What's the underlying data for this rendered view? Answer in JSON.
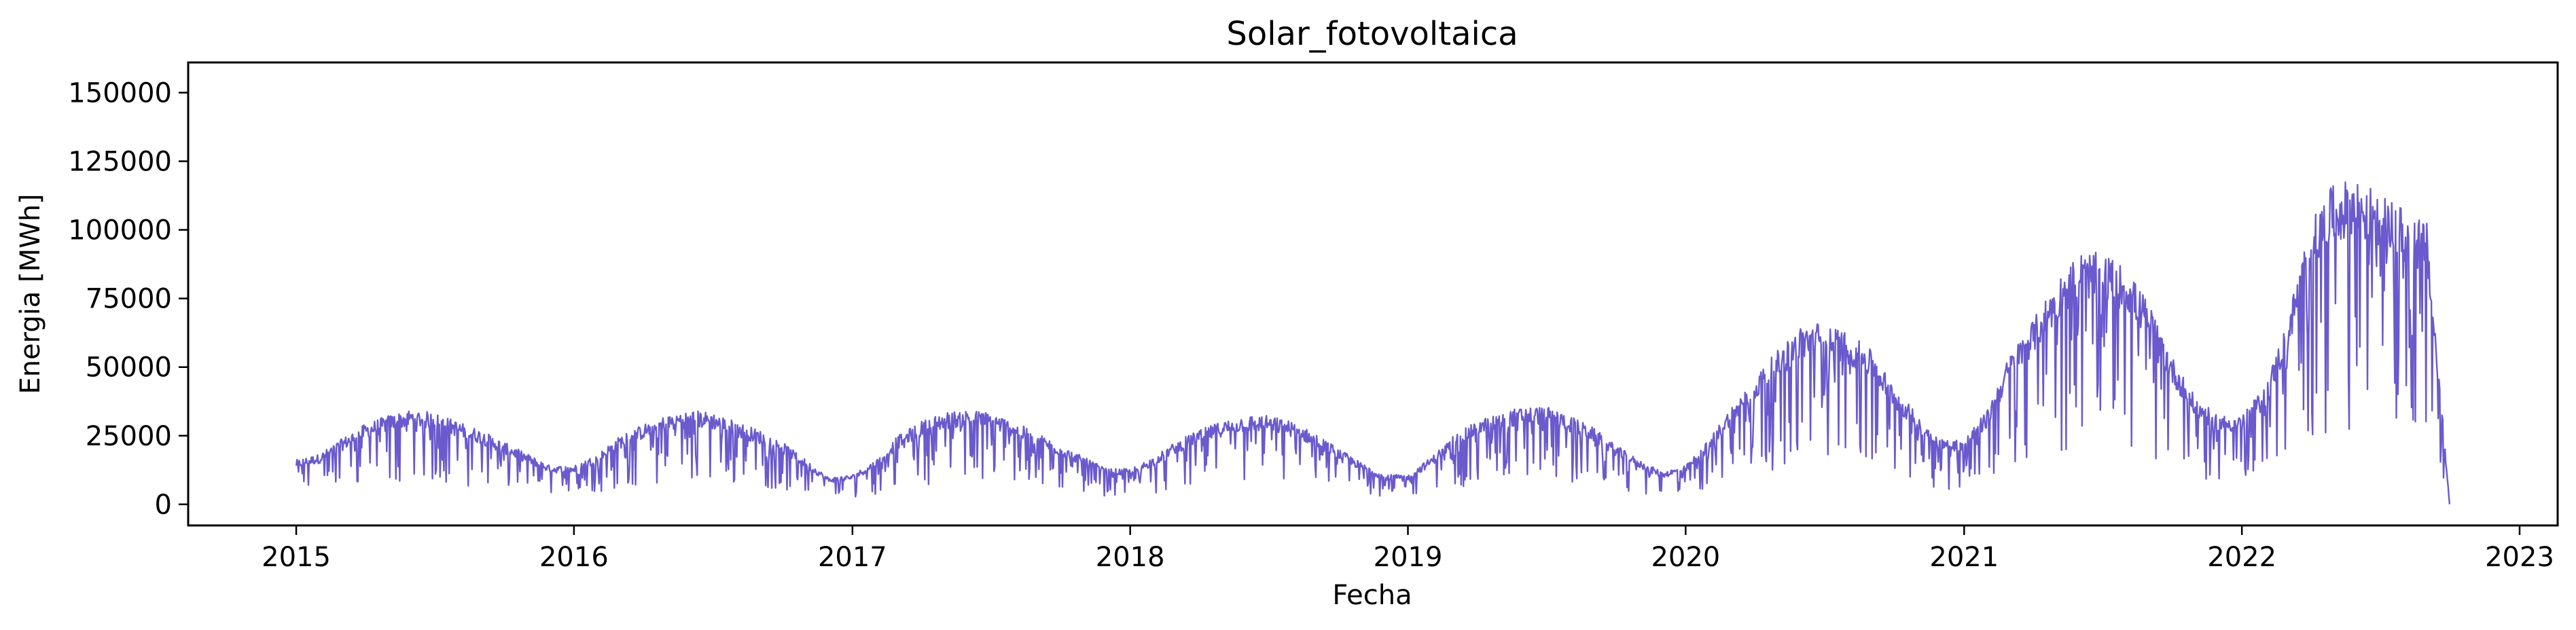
{
  "chart_data": {
    "type": "line",
    "title": "Solar_fotovoltaica",
    "xlabel": "Fecha",
    "ylabel": "Energia [MWh]",
    "x_range": [
      "2015-01-01",
      "2022-10-01"
    ],
    "xlim": [
      "2014-08-12",
      "2023-02-20"
    ],
    "ylim": [
      -7700,
      161000
    ],
    "x_ticks": [
      "2015",
      "2016",
      "2017",
      "2018",
      "2019",
      "2020",
      "2021",
      "2022",
      "2023"
    ],
    "y_ticks": [
      0,
      25000,
      50000,
      75000,
      100000,
      125000,
      150000
    ],
    "y_tick_labels": [
      "0",
      "25000",
      "50000",
      "75000",
      "100000",
      "125000",
      "150000"
    ],
    "grid": false,
    "legend": "none",
    "line_color": "#6a5acd",
    "series": [
      {
        "x": [
          "2015-01-01",
          "2015-02-01",
          "2015-03-01",
          "2015-04-01",
          "2015-05-01",
          "2015-06-01",
          "2015-07-01",
          "2015-08-01",
          "2015-09-01",
          "2015-10-01",
          "2015-11-01",
          "2015-12-01",
          "2016-01-01",
          "2016-02-01",
          "2016-03-01",
          "2016-04-01",
          "2016-05-01",
          "2016-06-01",
          "2016-07-01",
          "2016-08-01",
          "2016-09-01",
          "2016-10-01",
          "2016-11-01",
          "2016-12-01",
          "2017-01-01",
          "2017-02-01",
          "2017-03-01",
          "2017-04-01",
          "2017-05-01",
          "2017-06-01",
          "2017-07-01",
          "2017-08-01",
          "2017-09-01",
          "2017-10-01",
          "2017-11-01",
          "2017-12-01",
          "2018-01-01",
          "2018-02-01",
          "2018-03-01",
          "2018-04-01",
          "2018-05-01",
          "2018-06-01",
          "2018-07-01",
          "2018-08-01",
          "2018-09-01",
          "2018-10-01",
          "2018-11-01",
          "2018-12-01",
          "2019-01-01",
          "2019-02-01",
          "2019-03-01",
          "2019-04-01",
          "2019-05-01",
          "2019-06-01",
          "2019-07-01",
          "2019-08-01",
          "2019-09-01",
          "2019-10-01",
          "2019-11-01",
          "2019-12-01",
          "2020-01-01",
          "2020-02-01",
          "2020-03-01",
          "2020-04-01",
          "2020-05-01",
          "2020-06-01",
          "2020-07-01",
          "2020-08-01",
          "2020-09-01",
          "2020-10-01",
          "2020-11-01",
          "2020-12-01",
          "2021-01-01",
          "2021-02-01",
          "2021-03-01",
          "2021-04-01",
          "2021-05-01",
          "2021-06-01",
          "2021-07-01",
          "2021-08-01",
          "2021-09-01",
          "2021-10-01",
          "2021-11-01",
          "2021-12-01",
          "2022-01-01",
          "2022-02-01",
          "2022-03-01",
          "2022-04-01",
          "2022-05-01",
          "2022-06-01",
          "2022-07-01",
          "2022-08-01",
          "2022-09-01",
          "2022-10-01"
        ],
        "values": [
          15000,
          17000,
          22000,
          27000,
          30000,
          32000,
          31000,
          28000,
          25000,
          21000,
          17000,
          13000,
          13000,
          17000,
          23000,
          27000,
          30000,
          32000,
          31000,
          28000,
          25000,
          21000,
          15000,
          9000,
          10000,
          15000,
          23000,
          28000,
          31000,
          32000,
          31000,
          28000,
          24000,
          20000,
          16000,
          12000,
          12000,
          16000,
          21000,
          25000,
          28000,
          30000,
          30000,
          28000,
          24000,
          19000,
          14000,
          10000,
          10000,
          16000,
          23000,
          28000,
          31000,
          33000,
          33000,
          30000,
          26000,
          20000,
          15000,
          11000,
          13000,
          22000,
          33000,
          43000,
          52000,
          60000,
          62000,
          58000,
          52000,
          40000,
          30000,
          22000,
          22000,
          32000,
          50000,
          62000,
          75000,
          85000,
          85000,
          80000,
          68000,
          50000,
          36000,
          30000,
          30000,
          40000,
          62000,
          95000,
          108000,
          110000,
          105000,
          100000,
          95000,
          0
        ]
      }
    ]
  }
}
